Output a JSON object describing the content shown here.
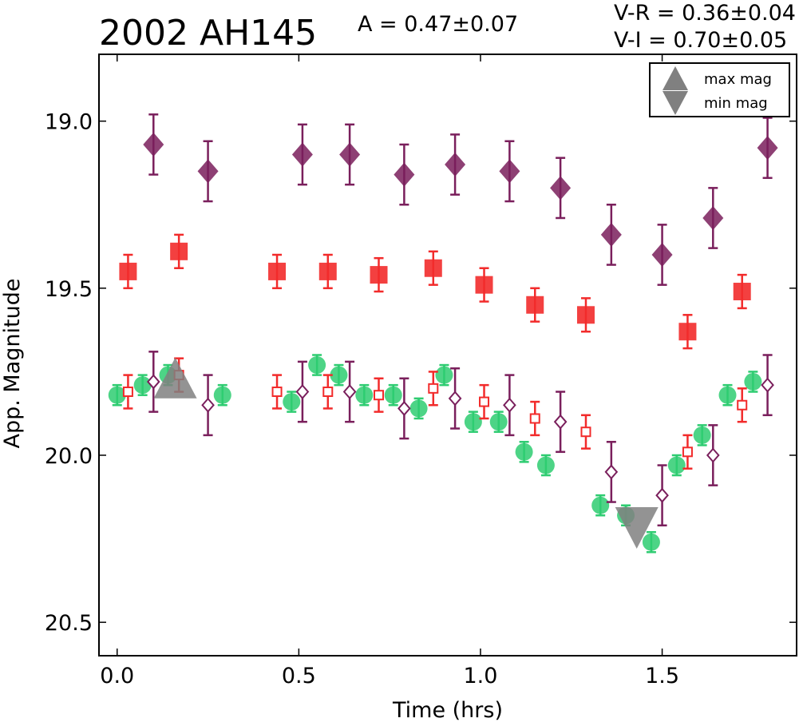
{
  "header": {
    "title": "2002 AH145",
    "amplitude": "A  = 0.47±0.07",
    "vr": "V-R  = 0.36±0.04",
    "vi": "V-I  = 0.70±0.05"
  },
  "legend": {
    "placement": "top-right",
    "entries": [
      "max mag",
      "min mag"
    ]
  },
  "chart_data": {
    "type": "scatter",
    "title": "2002 AH145",
    "xlabel": "Time (hrs)",
    "ylabel": "App. Magnitude",
    "xlim": [
      -0.05,
      1.87
    ],
    "ylim": [
      20.6,
      18.8
    ],
    "y_inverted": true,
    "grid": false,
    "xticks": [
      0.0,
      0.5,
      1.0,
      1.5
    ],
    "xtick_labels": [
      "0.0",
      "0.5",
      "1.0",
      "1.5"
    ],
    "yticks": [
      19.0,
      19.5,
      20.0,
      20.5
    ],
    "ytick_labels": [
      "19.0",
      "19.5",
      "20.0",
      "20.5"
    ],
    "colors": {
      "green": "#2ecc71",
      "red": "#f22b2b",
      "purple": "#7a1f5c",
      "marker_gray": "#808080"
    },
    "series": [
      {
        "marker": "filled-diamond",
        "color": "#7a1f5c",
        "x": [
          0.1,
          0.25,
          0.51,
          0.64,
          0.79,
          0.93,
          1.08,
          1.22,
          1.36,
          1.5,
          1.64,
          1.79
        ],
        "y": [
          19.07,
          19.15,
          19.1,
          19.1,
          19.16,
          19.13,
          19.15,
          19.2,
          19.34,
          19.4,
          19.29,
          19.08
        ],
        "err": [
          0.09,
          0.09,
          0.09,
          0.09,
          0.09,
          0.09,
          0.09,
          0.09,
          0.09,
          0.09,
          0.09,
          0.09
        ]
      },
      {
        "marker": "filled-square",
        "color": "#f22b2b",
        "x": [
          0.03,
          0.17,
          0.44,
          0.58,
          0.72,
          0.87,
          1.01,
          1.15,
          1.29,
          1.57,
          1.72
        ],
        "y": [
          19.45,
          19.39,
          19.45,
          19.45,
          19.46,
          19.44,
          19.49,
          19.55,
          19.58,
          19.63,
          19.51
        ],
        "err": [
          0.05,
          0.05,
          0.05,
          0.05,
          0.05,
          0.05,
          0.05,
          0.05,
          0.05,
          0.05,
          0.05
        ]
      },
      {
        "marker": "filled-circle",
        "color": "#2ecc71",
        "x": [
          0.0,
          0.07,
          0.14,
          0.29,
          0.48,
          0.55,
          0.61,
          0.68,
          0.76,
          0.83,
          0.9,
          0.98,
          1.05,
          1.12,
          1.18,
          1.33,
          1.4,
          1.47,
          1.54,
          1.61,
          1.68,
          1.75
        ],
        "y": [
          19.82,
          19.79,
          19.76,
          19.82,
          19.84,
          19.73,
          19.76,
          19.82,
          19.82,
          19.86,
          19.76,
          19.9,
          19.9,
          19.99,
          20.03,
          20.15,
          20.18,
          20.26,
          20.03,
          19.94,
          19.82,
          19.78
        ],
        "err": [
          0.03,
          0.03,
          0.03,
          0.03,
          0.03,
          0.03,
          0.03,
          0.03,
          0.03,
          0.03,
          0.03,
          0.03,
          0.03,
          0.03,
          0.03,
          0.03,
          0.03,
          0.03,
          0.03,
          0.03,
          0.03,
          0.03
        ]
      },
      {
        "marker": "open-square",
        "color": "#f22b2b",
        "x": [
          0.03,
          0.17,
          0.44,
          0.58,
          0.72,
          0.87,
          1.01,
          1.15,
          1.29,
          1.57,
          1.72
        ],
        "y": [
          19.81,
          19.76,
          19.81,
          19.81,
          19.82,
          19.8,
          19.84,
          19.89,
          19.93,
          19.99,
          19.85
        ],
        "err": [
          0.05,
          0.05,
          0.05,
          0.05,
          0.05,
          0.05,
          0.05,
          0.05,
          0.05,
          0.05,
          0.05
        ]
      },
      {
        "marker": "open-diamond",
        "color": "#7a1f5c",
        "x": [
          0.1,
          0.25,
          0.51,
          0.64,
          0.79,
          0.93,
          1.08,
          1.22,
          1.36,
          1.5,
          1.64,
          1.79
        ],
        "y": [
          19.78,
          19.85,
          19.81,
          19.81,
          19.86,
          19.83,
          19.85,
          19.9,
          20.05,
          20.12,
          20.0,
          19.79
        ],
        "err": [
          0.09,
          0.09,
          0.09,
          0.09,
          0.09,
          0.09,
          0.09,
          0.09,
          0.09,
          0.09,
          0.09,
          0.09
        ]
      }
    ],
    "max_mag_marker": {
      "x": 0.16,
      "y": 19.77
    },
    "min_mag_marker": {
      "x": 1.43,
      "y": 20.22
    }
  }
}
